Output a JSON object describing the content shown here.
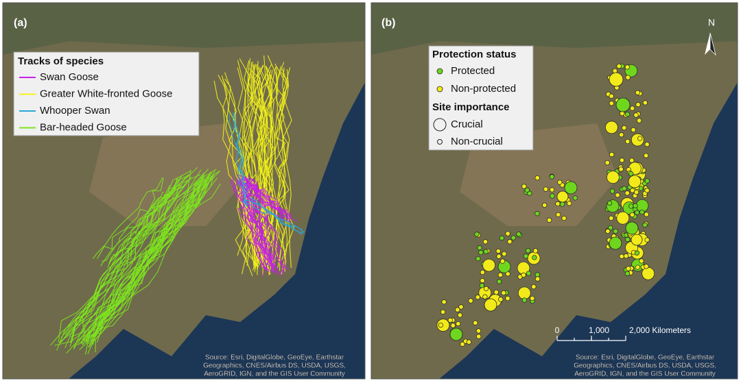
{
  "panels": [
    {
      "label": "(a)",
      "legend": {
        "title": "Tracks of species",
        "entries": [
          {
            "label": "Swan Goose",
            "color": "#c71fe8"
          },
          {
            "label": "Greater White-fronted Goose",
            "color": "#f2f21a"
          },
          {
            "label": "Whooper Swan",
            "color": "#2aa7d8"
          },
          {
            "label": "Bar-headed Goose",
            "color": "#7de61e"
          }
        ]
      },
      "attribution": [
        "Source: Esri, DigitalGlobe, GeoEye, Earthstar",
        "Geographics, CNES/Airbus DS, USDA, USGS,",
        "AeroGRID, IGN, and the GIS User Community"
      ]
    },
    {
      "label": "(b)",
      "legend": {
        "status_title": "Protection status",
        "status": [
          {
            "label": "Protected",
            "color": "#6fd61e"
          },
          {
            "label": "Non-protected",
            "color": "#f2ea1a"
          }
        ],
        "importance_title": "Site importance",
        "importance": [
          {
            "label": "Crucial"
          },
          {
            "label": "Non-crucial"
          }
        ]
      },
      "north": "N",
      "scale_bar": [
        "0",
        "1,000",
        "2,000 Kilometers"
      ],
      "attribution": [
        "Source: Esri, DigitalGlobe, GeoEye, Earthstar",
        "Geographics, CNES/Airbus DS, USDA, USGS,",
        "AeroGRID, IGN, and the GIS User Community"
      ]
    }
  ]
}
